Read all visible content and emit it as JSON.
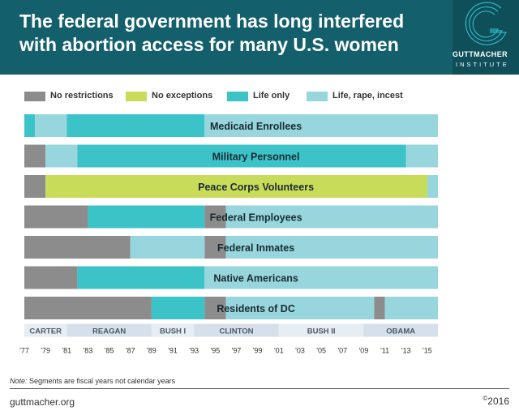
{
  "header": {
    "title_line1": "The federal government has long interfered",
    "title_line2": "with abortion access for many U.S. women",
    "logo_name": "GUTTMACHER",
    "logo_sub": "INSTITUTE"
  },
  "colors": {
    "header_bg": "#135f6b",
    "no_restrictions": "#8c8c8c",
    "no_exceptions": "#c9dc5a",
    "life_only": "#3cc3c8",
    "life_rape_incest": "#97d6dc",
    "era_bar": "#dde6ee"
  },
  "chart_data": {
    "type": "bar",
    "subtype": "timeline-stacked-horizontal",
    "x_unit": "fiscal year",
    "xlim": [
      1977,
      2016
    ],
    "legend": [
      {
        "key": "no_restrictions",
        "label": "No restrictions"
      },
      {
        "key": "no_exceptions",
        "label": "No exceptions"
      },
      {
        "key": "life_only",
        "label": "Life only"
      },
      {
        "key": "life_rape_incest",
        "label": "Life, rape, incest"
      }
    ],
    "rows": [
      {
        "label": "Medicaid Enrollees",
        "segments": [
          {
            "start": 1977,
            "end": 1978,
            "policy": "life_only"
          },
          {
            "start": 1978,
            "end": 1981,
            "policy": "life_rape_incest"
          },
          {
            "start": 1981,
            "end": 1994,
            "policy": "life_only"
          },
          {
            "start": 1994,
            "end": 2016,
            "policy": "life_rape_incest"
          }
        ]
      },
      {
        "label": "Military Personnel",
        "segments": [
          {
            "start": 1977,
            "end": 1979,
            "policy": "no_restrictions"
          },
          {
            "start": 1979,
            "end": 1982,
            "policy": "life_rape_incest"
          },
          {
            "start": 1982,
            "end": 2013,
            "policy": "life_only"
          },
          {
            "start": 2013,
            "end": 2016,
            "policy": "life_rape_incest"
          }
        ]
      },
      {
        "label": "Peace Corps Volunteers",
        "segments": [
          {
            "start": 1977,
            "end": 1979,
            "policy": "no_restrictions"
          },
          {
            "start": 1979,
            "end": 2015,
            "policy": "no_exceptions"
          },
          {
            "start": 2015,
            "end": 2016,
            "policy": "life_rape_incest"
          }
        ]
      },
      {
        "label": "Federal Employees",
        "segments": [
          {
            "start": 1977,
            "end": 1983,
            "policy": "no_restrictions"
          },
          {
            "start": 1983,
            "end": 1994,
            "policy": "life_only"
          },
          {
            "start": 1994,
            "end": 1996,
            "policy": "no_restrictions"
          },
          {
            "start": 1996,
            "end": 2016,
            "policy": "life_rape_incest"
          }
        ]
      },
      {
        "label": "Federal Inmates",
        "segments": [
          {
            "start": 1977,
            "end": 1987,
            "policy": "no_restrictions"
          },
          {
            "start": 1987,
            "end": 1994,
            "policy": "life_rape_incest"
          },
          {
            "start": 1994,
            "end": 1996,
            "policy": "no_restrictions"
          },
          {
            "start": 1996,
            "end": 2016,
            "policy": "life_rape_incest"
          }
        ]
      },
      {
        "label": "Native Americans",
        "segments": [
          {
            "start": 1977,
            "end": 1982,
            "policy": "no_restrictions"
          },
          {
            "start": 1982,
            "end": 1994,
            "policy": "life_only"
          },
          {
            "start": 1994,
            "end": 2016,
            "policy": "life_rape_incest"
          }
        ]
      },
      {
        "label": "Residents of DC",
        "segments": [
          {
            "start": 1977,
            "end": 1989,
            "policy": "no_restrictions"
          },
          {
            "start": 1989,
            "end": 1994,
            "policy": "life_only"
          },
          {
            "start": 1994,
            "end": 1996,
            "policy": "no_restrictions"
          },
          {
            "start": 1996,
            "end": 2010,
            "policy": "life_rape_incest"
          },
          {
            "start": 2010,
            "end": 2011,
            "policy": "no_restrictions"
          },
          {
            "start": 2011,
            "end": 2016,
            "policy": "life_rape_incest"
          }
        ]
      }
    ],
    "eras": [
      {
        "label": "CARTER",
        "start": 1977,
        "end": 1981
      },
      {
        "label": "REAGAN",
        "start": 1981,
        "end": 1989
      },
      {
        "label": "BUSH I",
        "start": 1989,
        "end": 1993
      },
      {
        "label": "CLINTON",
        "start": 1993,
        "end": 2001
      },
      {
        "label": "BUSH II",
        "start": 2001,
        "end": 2009
      },
      {
        "label": "OBAMA",
        "start": 2009,
        "end": 2016
      }
    ],
    "ticks": [
      {
        "year": 1977,
        "label": "'77"
      },
      {
        "year": 1979,
        "label": "'79"
      },
      {
        "year": 1981,
        "label": "'81"
      },
      {
        "year": 1983,
        "label": "'83"
      },
      {
        "year": 1985,
        "label": "'85"
      },
      {
        "year": 1987,
        "label": "'87"
      },
      {
        "year": 1989,
        "label": "'89"
      },
      {
        "year": 1991,
        "label": "'91"
      },
      {
        "year": 1993,
        "label": "'93"
      },
      {
        "year": 1995,
        "label": "'95"
      },
      {
        "year": 1997,
        "label": "'97"
      },
      {
        "year": 1999,
        "label": "'99"
      },
      {
        "year": 2001,
        "label": "'01"
      },
      {
        "year": 2003,
        "label": "'03"
      },
      {
        "year": 2005,
        "label": "'05"
      },
      {
        "year": 2007,
        "label": "'07"
      },
      {
        "year": 2009,
        "label": "'09"
      },
      {
        "year": 2011,
        "label": "'11"
      },
      {
        "year": 2013,
        "label": "'13"
      },
      {
        "year": 2015,
        "label": "'15"
      }
    ]
  },
  "note_prefix": "Note:",
  "note_text": " Segments are fiscal years not calendar years",
  "footer": {
    "site": "guttmacher.org",
    "copyright_symbol": "©",
    "year": "2016"
  }
}
